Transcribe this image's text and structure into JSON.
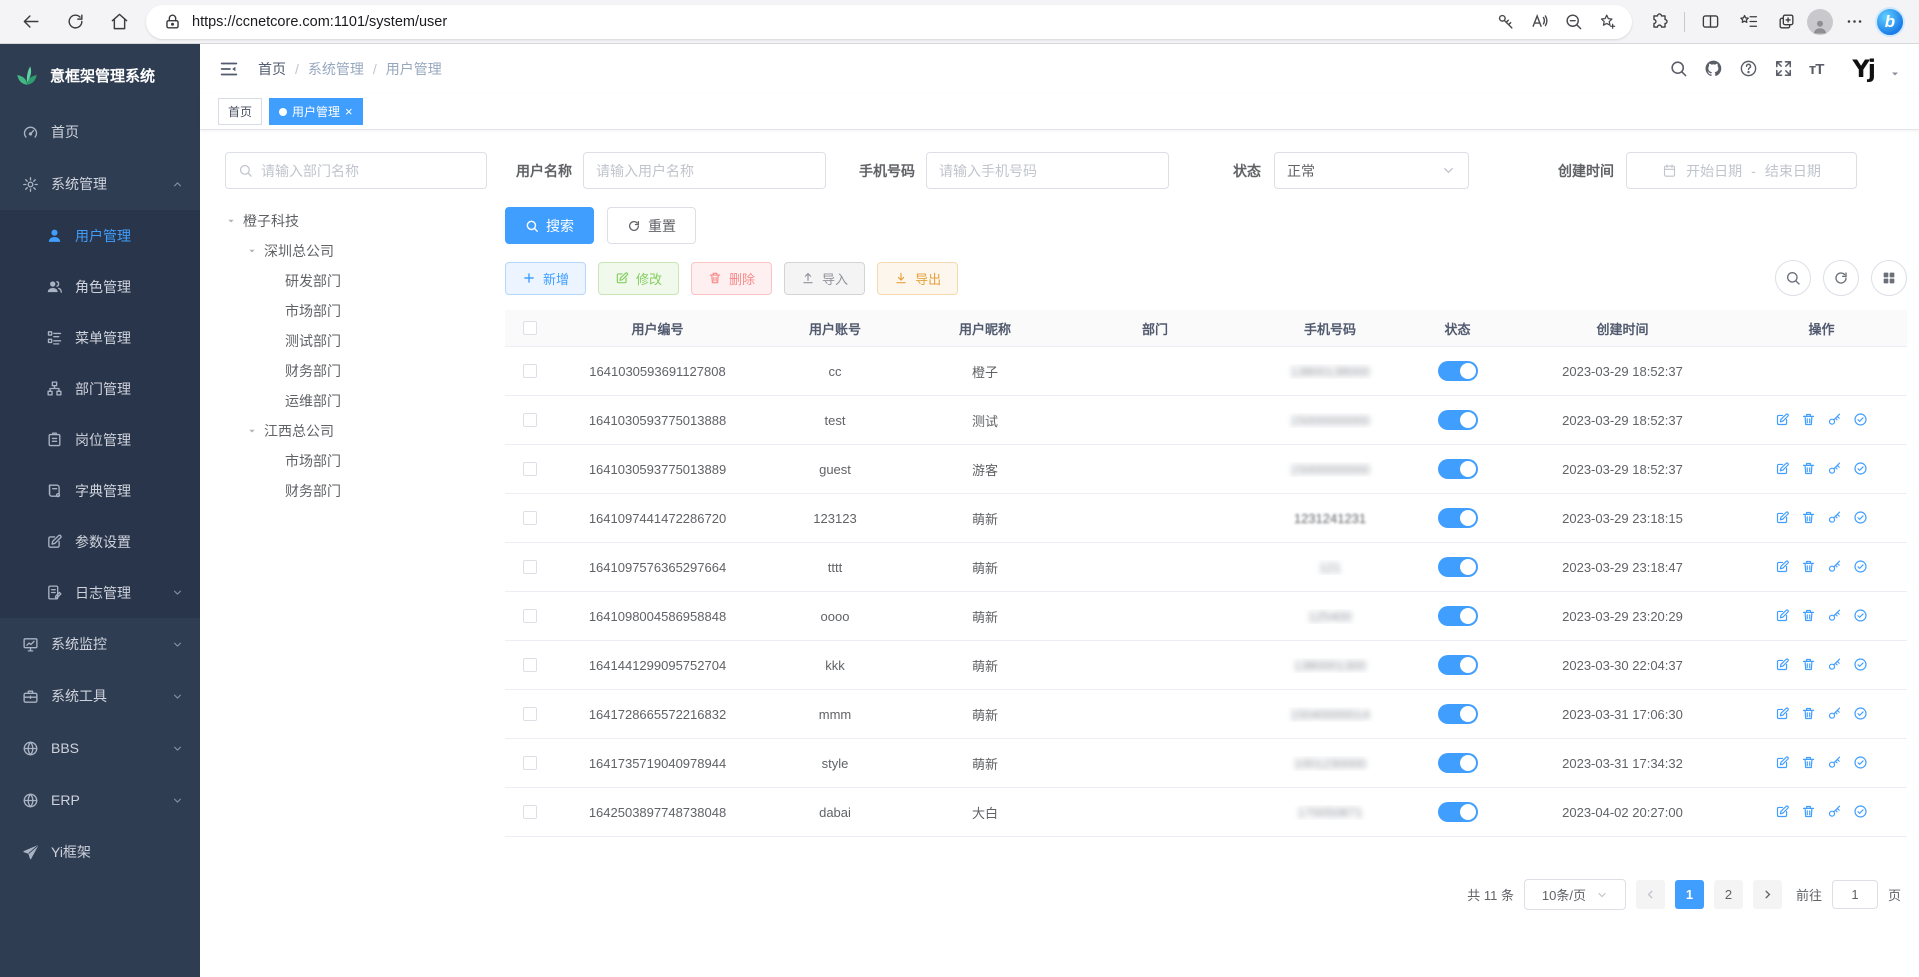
{
  "browser": {
    "url": "https://ccnetcore.com:1101/system/user"
  },
  "sidebar": {
    "logo_title": "意框架管理系统",
    "menu": [
      {
        "key": "home",
        "label": "首页",
        "icon": "dashboard"
      },
      {
        "key": "system",
        "label": "系统管理",
        "icon": "gear",
        "expanded": true,
        "children": [
          {
            "key": "user",
            "label": "用户管理",
            "icon": "user",
            "active": true
          },
          {
            "key": "role",
            "label": "角色管理",
            "icon": "users"
          },
          {
            "key": "menu",
            "label": "菜单管理",
            "icon": "menu-tree"
          },
          {
            "key": "dept",
            "label": "部门管理",
            "icon": "org"
          },
          {
            "key": "post",
            "label": "岗位管理",
            "icon": "badge"
          },
          {
            "key": "dict",
            "label": "字典管理",
            "icon": "dict"
          },
          {
            "key": "config",
            "label": "参数设置",
            "icon": "edit"
          },
          {
            "key": "log",
            "label": "日志管理",
            "icon": "log",
            "hasChildren": true
          }
        ]
      },
      {
        "key": "monitor",
        "label": "系统监控",
        "icon": "monitor",
        "hasChildren": true
      },
      {
        "key": "tools",
        "label": "系统工具",
        "icon": "tools",
        "hasChildren": true
      },
      {
        "key": "bbs",
        "label": "BBS",
        "icon": "globe",
        "hasChildren": true
      },
      {
        "key": "erp",
        "label": "ERP",
        "icon": "globe",
        "hasChildren": true
      },
      {
        "key": "yi",
        "label": "Yi框架",
        "icon": "plane"
      }
    ]
  },
  "navbar": {
    "breadcrumb": [
      "首页",
      "系统管理",
      "用户管理"
    ],
    "separator": "/",
    "user_logo": "Yj"
  },
  "tabs": [
    {
      "label": "首页",
      "active": false
    },
    {
      "label": "用户管理",
      "active": true,
      "close": "×"
    }
  ],
  "filters": {
    "dept_search_placeholder": "请输入部门名称",
    "username_label": "用户名称",
    "username_placeholder": "请输入用户名称",
    "phone_label": "手机号码",
    "phone_placeholder": "请输入手机号码",
    "status_label": "状态",
    "status_value": "正常",
    "created_label": "创建时间",
    "date_start_placeholder": "开始日期",
    "date_separator": "-",
    "date_end_placeholder": "结束日期"
  },
  "tree": [
    {
      "label": "橙子科技",
      "children": [
        {
          "label": "深圳总公司",
          "children": [
            {
              "label": "研发部门"
            },
            {
              "label": "市场部门"
            },
            {
              "label": "测试部门"
            },
            {
              "label": "财务部门"
            },
            {
              "label": "运维部门"
            }
          ]
        },
        {
          "label": "江西总公司",
          "children": [
            {
              "label": "市场部门"
            },
            {
              "label": "财务部门"
            }
          ]
        }
      ]
    }
  ],
  "actions": {
    "search": "搜索",
    "reset": "重置",
    "add": "新增",
    "edit": "修改",
    "delete": "删除",
    "import": "导入",
    "export": "导出"
  },
  "table": {
    "columns": [
      "用户编号",
      "用户账号",
      "用户昵称",
      "部门",
      "手机号码",
      "状态",
      "创建时间",
      "操作"
    ],
    "rows": [
      {
        "id": "1641030593691127808",
        "account": "cc",
        "nickname": "橙子",
        "dept": "",
        "phone": "13800138000",
        "phone_blur": "heavy",
        "status": true,
        "created": "2023-03-29 18:52:37",
        "actions": false
      },
      {
        "id": "1641030593775013888",
        "account": "test",
        "nickname": "测试",
        "dept": "",
        "phone": "15000000000",
        "phone_blur": "heavy",
        "status": true,
        "created": "2023-03-29 18:52:37",
        "actions": true
      },
      {
        "id": "1641030593775013889",
        "account": "guest",
        "nickname": "游客",
        "dept": "",
        "phone": "15000000000",
        "phone_blur": "heavy",
        "status": true,
        "created": "2023-03-29 18:52:37",
        "actions": true
      },
      {
        "id": "1641097441472286720",
        "account": "123123",
        "nickname": "萌新",
        "dept": "",
        "phone": "1231241231",
        "phone_blur": "light",
        "status": true,
        "created": "2023-03-29 23:18:15",
        "actions": true
      },
      {
        "id": "1641097576365297664",
        "account": "tttt",
        "nickname": "萌新",
        "dept": "",
        "phone": "121",
        "phone_blur": "heavy",
        "status": true,
        "created": "2023-03-29 23:18:47",
        "actions": true
      },
      {
        "id": "1641098004586958848",
        "account": "oooo",
        "nickname": "萌新",
        "dept": "",
        "phone": "125400",
        "phone_blur": "heavy",
        "status": true,
        "created": "2023-03-29 23:20:29",
        "actions": true
      },
      {
        "id": "1641441299095752704",
        "account": "kkk",
        "nickname": "萌新",
        "dept": "",
        "phone": "1380001300",
        "phone_blur": "heavy",
        "status": true,
        "created": "2023-03-30 22:04:37",
        "actions": true
      },
      {
        "id": "1641728665572216832",
        "account": "mmm",
        "nickname": "萌新",
        "dept": "",
        "phone": "15040000014",
        "phone_blur": "heavy",
        "status": true,
        "created": "2023-03-31 17:06:30",
        "actions": true
      },
      {
        "id": "1641735719040978944",
        "account": "style",
        "nickname": "萌新",
        "dept": "",
        "phone": "1001230000",
        "phone_blur": "heavy",
        "status": true,
        "created": "2023-03-31 17:34:32",
        "actions": true
      },
      {
        "id": "1642503897748738048",
        "account": "dabai",
        "nickname": "大白",
        "dept": "",
        "phone": "170050871",
        "phone_blur": "heavy",
        "status": true,
        "created": "2023-04-02 20:27:00",
        "actions": true
      }
    ]
  },
  "pagination": {
    "total_text": "共 11 条",
    "page_size": "10条/页",
    "pages": [
      "1",
      "2"
    ],
    "active_page": "1",
    "goto_label": "前往",
    "goto_value": "1",
    "page_suffix": "页"
  }
}
